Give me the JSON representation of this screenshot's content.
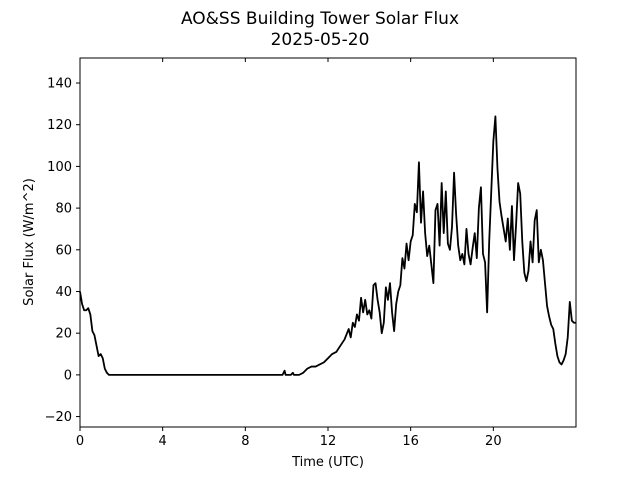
{
  "chart_data": {
    "type": "line",
    "title": "AO&SS Building Tower Solar Flux",
    "subtitle": "2025-05-20",
    "xlabel": "Time (UTC)",
    "ylabel": "Solar Flux (W/m^2)",
    "xlim": [
      0,
      24
    ],
    "ylim": [
      -25,
      152
    ],
    "xticks": [
      0,
      4,
      8,
      12,
      16,
      20
    ],
    "xtick_labels": [
      "0",
      "4",
      "8",
      "12",
      "16",
      "20"
    ],
    "yticks": [
      -20,
      0,
      20,
      40,
      60,
      80,
      100,
      120,
      140
    ],
    "ytick_labels": [
      "−20",
      "0",
      "20",
      "40",
      "60",
      "80",
      "100",
      "120",
      "140"
    ],
    "grid": false,
    "line_color": "#000000",
    "series": [
      {
        "x": [
          0.0,
          0.1,
          0.2,
          0.3,
          0.4,
          0.5,
          0.6,
          0.7,
          0.8,
          0.9,
          1.0,
          1.1,
          1.2,
          1.3,
          1.4,
          1.5,
          2.0,
          4.0,
          6.0,
          8.0,
          9.0,
          9.8,
          9.9,
          9.95,
          10.2,
          10.3,
          10.35,
          10.6,
          10.8,
          11.0,
          11.2,
          11.4,
          11.6,
          11.8,
          12.0,
          12.2,
          12.4,
          12.6,
          12.8,
          13.0,
          13.1,
          13.2,
          13.3,
          13.4,
          13.5,
          13.6,
          13.7,
          13.8,
          13.9,
          14.0,
          14.1,
          14.2,
          14.3,
          14.4,
          14.5,
          14.6,
          14.7,
          14.8,
          14.9,
          15.0,
          15.1,
          15.2,
          15.3,
          15.4,
          15.5,
          15.6,
          15.7,
          15.8,
          15.9,
          16.0,
          16.1,
          16.2,
          16.3,
          16.4,
          16.5,
          16.6,
          16.7,
          16.8,
          16.9,
          17.0,
          17.1,
          17.2,
          17.3,
          17.4,
          17.5,
          17.6,
          17.7,
          17.8,
          17.9,
          18.0,
          18.1,
          18.2,
          18.3,
          18.4,
          18.5,
          18.6,
          18.7,
          18.8,
          18.9,
          19.0,
          19.1,
          19.2,
          19.3,
          19.4,
          19.5,
          19.6,
          19.7,
          19.8,
          19.9,
          20.0,
          20.1,
          20.2,
          20.3,
          20.4,
          20.5,
          20.6,
          20.7,
          20.8,
          20.9,
          21.0,
          21.1,
          21.2,
          21.3,
          21.4,
          21.5,
          21.6,
          21.7,
          21.8,
          21.9,
          22.0,
          22.1,
          22.2,
          22.3,
          22.4,
          22.5,
          22.6,
          22.7,
          22.8,
          22.9,
          23.0,
          23.1,
          23.2,
          23.3,
          23.4,
          23.5,
          23.6,
          23.7,
          23.8,
          23.9,
          24.0
        ],
        "y": [
          40,
          34,
          31,
          31,
          32,
          29,
          21,
          19,
          14,
          9,
          10,
          8,
          3,
          1,
          0,
          0,
          0,
          0,
          0,
          0,
          0,
          0,
          2,
          0,
          0,
          1,
          0,
          0,
          1,
          3,
          4,
          4,
          5,
          6,
          8,
          10,
          11,
          14,
          17,
          22,
          18,
          25,
          23,
          29,
          26,
          37,
          30,
          36,
          29,
          31,
          27,
          43,
          44,
          36,
          30,
          20,
          25,
          42,
          36,
          44,
          30,
          21,
          34,
          40,
          43,
          56,
          51,
          63,
          55,
          64,
          67,
          82,
          78,
          102,
          73,
          88,
          68,
          57,
          62,
          53,
          44,
          79,
          82,
          62,
          92,
          68,
          88,
          63,
          60,
          71,
          97,
          77,
          62,
          55,
          58,
          53,
          70,
          58,
          53,
          61,
          68,
          56,
          80,
          90,
          58,
          54,
          30,
          64,
          88,
          112,
          124,
          99,
          83,
          76,
          70,
          64,
          75,
          60,
          81,
          55,
          72,
          92,
          87,
          64,
          49,
          45,
          50,
          64,
          54,
          74,
          79,
          54,
          60,
          55,
          44,
          33,
          28,
          24,
          22,
          15,
          9,
          6,
          5,
          7,
          10,
          18,
          35,
          26,
          25,
          25
        ]
      }
    ]
  }
}
